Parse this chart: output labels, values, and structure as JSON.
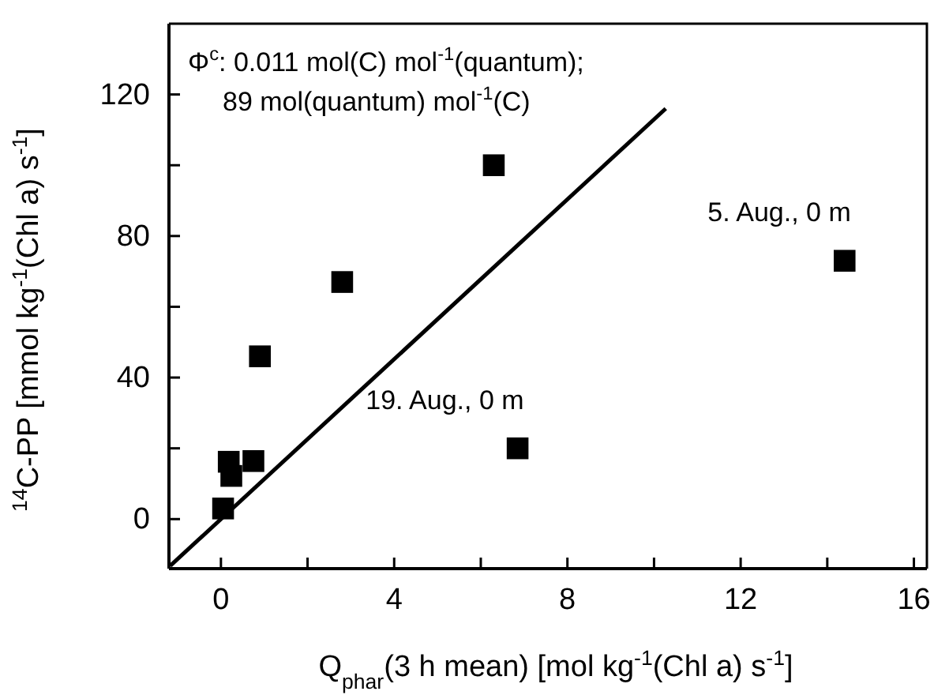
{
  "chart_data": {
    "type": "scatter",
    "xlabel": "Q$_{phar}$(3 h mean)  [mol kg$^{-1}$(Chl a) s$^{-1}$]",
    "ylabel": "$^{14}$C-PP  [mmol kg$^{-1}$(Chl a) s$^{-1}$]",
    "xlim": [
      -1.2,
      16.3
    ],
    "ylim": [
      -14,
      140
    ],
    "xticks": [
      0,
      {
        "value": 2,
        "label": null
      },
      4,
      {
        "value": 6,
        "label": null
      },
      8,
      {
        "value": 10,
        "label": null
      },
      12,
      {
        "value": 14,
        "label": null
      },
      16
    ],
    "yticks": [
      0,
      {
        "value": 20,
        "label": null
      },
      40,
      {
        "value": 60,
        "label": null
      },
      80,
      {
        "value": 100,
        "label": null
      },
      120
    ],
    "grid": false,
    "series": [
      {
        "marker": "square",
        "color": "#000000",
        "x": [
          6.3,
          2.8,
          0.9,
          0.75,
          0.18,
          0.24,
          0.05,
          6.85,
          14.4
        ],
        "values": [
          100,
          67,
          46,
          16.4,
          16.2,
          12.2,
          3,
          20,
          73
        ]
      },
      {
        "type": "line",
        "color": "#000000",
        "x": [
          -1.17,
          10.27
        ],
        "values": [
          -13.2,
          116
        ]
      }
    ],
    "annotations": [
      "Φ$^{c}$: 0.011 mol(C) mol$^{-1}$(quantum);",
      "89 mol(quantum) mol$^{-1}$(C)",
      {
        "text": "5. Aug., 0 m",
        "x": 14.4,
        "y": 73
      },
      {
        "text": "19. Aug., 0 m",
        "x": 6.85,
        "y": 20
      }
    ]
  }
}
